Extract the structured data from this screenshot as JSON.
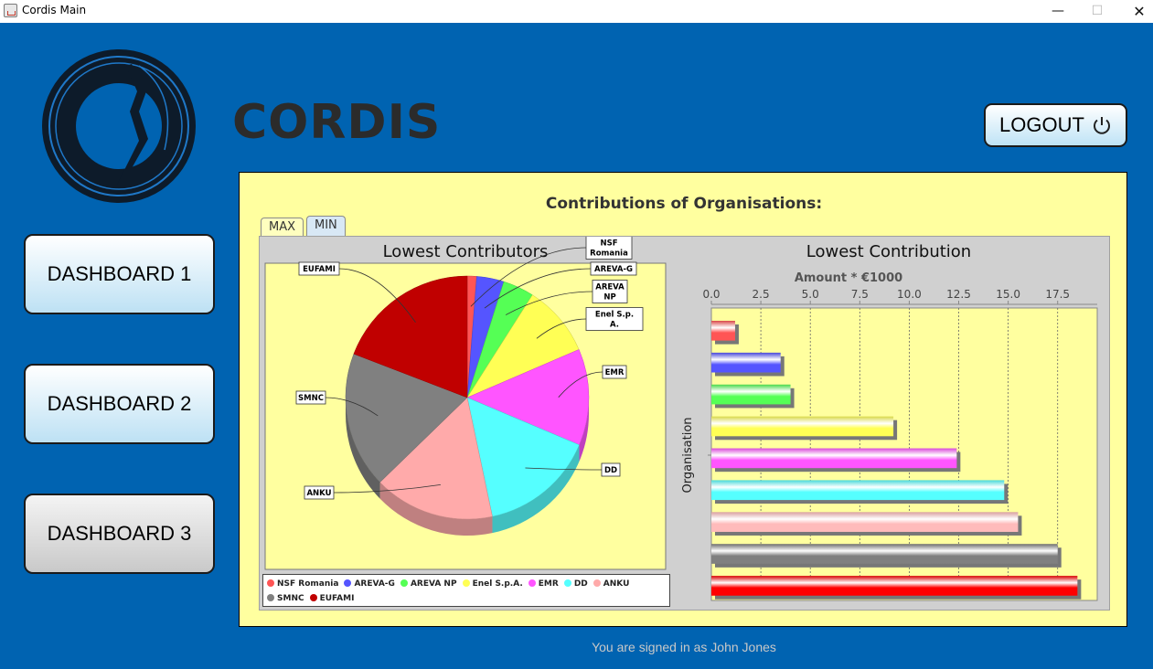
{
  "window": {
    "title": "Cordis Main",
    "minimize_glyph": "—",
    "maximize_glyph": "☐",
    "close_glyph": "✕"
  },
  "header": {
    "app_name": "CORDIS",
    "logout_label": "LOGOUT",
    "logout_icon": "power-icon"
  },
  "sidebar": {
    "buttons": [
      {
        "label": "DASHBOARD 1",
        "style": "light"
      },
      {
        "label": "DASHBOARD 2",
        "style": "light"
      },
      {
        "label": "DASHBOARD 3",
        "style": "gray"
      }
    ]
  },
  "panel": {
    "title": "Contributions of Organisations:",
    "tabs": [
      {
        "label": "MAX",
        "selected": false
      },
      {
        "label": "MIN",
        "selected": true
      }
    ]
  },
  "chart_data": [
    {
      "type": "pie",
      "title": "Lowest Contributors",
      "categories": [
        "NSF Romania",
        "AREVA-G",
        "AREVA NP",
        "Enel S.p.A.",
        "EMR",
        "DD",
        "ANKU",
        "SMNC",
        "EUFAMI"
      ],
      "values": [
        1.2,
        3.5,
        4.0,
        9.2,
        12.4,
        14.8,
        15.5,
        17.5,
        18.5
      ],
      "colors": [
        "#ff5555",
        "#5555ff",
        "#55ff55",
        "#ffff55",
        "#ff55ff",
        "#55ffff",
        "#ffaaaa",
        "#808080",
        "#c00000"
      ],
      "labels": [
        "NSF\nRomania",
        "AREVA-G",
        "AREVA\nNP",
        "Enel S.p.\nA.",
        "EMR",
        "DD",
        "ANKU",
        "SMNC",
        "EUFAMI"
      ],
      "legend": "bottom"
    },
    {
      "type": "bar",
      "orientation": "horizontal",
      "title": "Lowest Contribution",
      "xlabel": "Amount * €1000",
      "ylabel": "Organisation",
      "xlim": [
        0,
        19.5
      ],
      "xticks": [
        "0.0",
        "2.5",
        "5.0",
        "7.5",
        "10.0",
        "12.5",
        "15.0",
        "17.5"
      ],
      "categories": [
        "NSF Romania",
        "AREVA-G",
        "AREVA NP",
        "Enel S.p.A.",
        "EMR",
        "DD",
        "ANKU",
        "SMNC",
        "EUFAMI"
      ],
      "values": [
        1.2,
        3.5,
        4.0,
        9.2,
        12.4,
        14.8,
        15.5,
        17.5,
        18.5
      ],
      "colors": [
        "#ff5555",
        "#5555ff",
        "#55ff55",
        "#ffff55",
        "#ff55ff",
        "#55ffff",
        "#ffbbbb",
        "#808080",
        "#ff0000"
      ],
      "grid": true,
      "xaxis_position": "top"
    }
  ],
  "footer": {
    "signed_in_text": "You are signed in as John Jones"
  }
}
